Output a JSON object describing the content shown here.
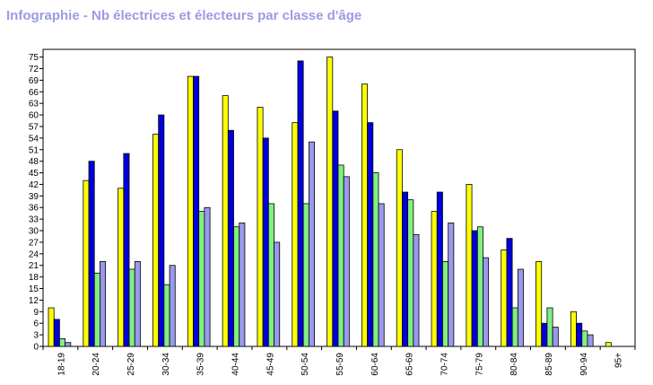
{
  "title": "Infographie - Nb électrices et électeurs par classe d'âge",
  "chart_data": {
    "type": "bar",
    "title": "Infographie - Nb électrices et électeurs par classe d'âge",
    "xlabel": "",
    "ylabel": "",
    "ylim": [
      0,
      77
    ],
    "yticks": [
      0,
      3,
      6,
      9,
      12,
      15,
      18,
      21,
      24,
      27,
      30,
      33,
      36,
      39,
      42,
      45,
      48,
      51,
      54,
      57,
      60,
      63,
      66,
      69,
      72,
      75
    ],
    "categories": [
      "18-19",
      "20-24",
      "25-29",
      "30-34",
      "35-39",
      "40-44",
      "45-49",
      "50-54",
      "55-59",
      "60-64",
      "65-69",
      "70-74",
      "75-79",
      "80-84",
      "85-89",
      "90-94",
      "95+"
    ],
    "series": [
      {
        "color": "#ffff00",
        "values": [
          10,
          43,
          41,
          55,
          70,
          65,
          62,
          58,
          75,
          68,
          51,
          35,
          42,
          25,
          22,
          9,
          1
        ]
      },
      {
        "color": "#0000dd",
        "values": [
          7,
          48,
          50,
          60,
          70,
          56,
          54,
          74,
          61,
          58,
          40,
          40,
          30,
          28,
          6,
          6,
          0
        ]
      },
      {
        "color": "#80f080",
        "values": [
          2,
          19,
          20,
          16,
          35,
          31,
          37,
          37,
          47,
          45,
          38,
          22,
          31,
          10,
          10,
          4,
          0
        ]
      },
      {
        "color": "#9999ee",
        "values": [
          1,
          22,
          22,
          21,
          36,
          32,
          27,
          53,
          44,
          37,
          29,
          32,
          23,
          20,
          5,
          3,
          0
        ]
      }
    ],
    "grid": false,
    "legend": "none"
  }
}
